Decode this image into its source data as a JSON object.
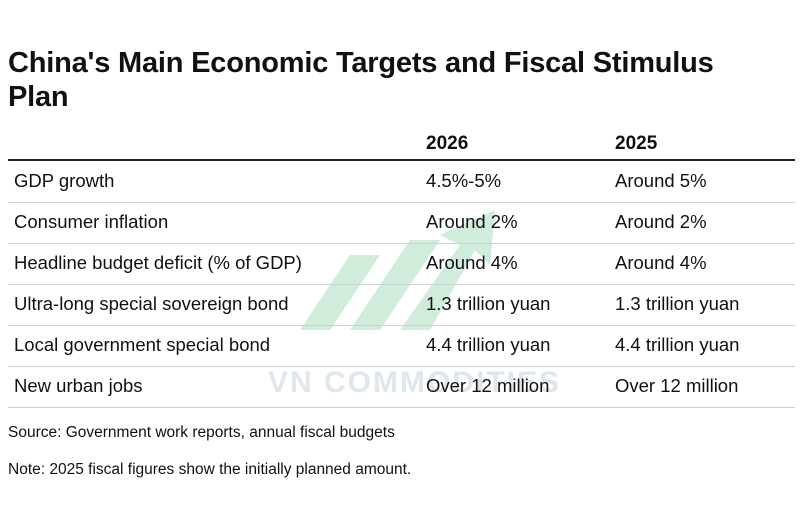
{
  "header": {
    "title": "China's Main Economic Targets and Fiscal Stimulus Plan"
  },
  "table": {
    "columns": [
      "2026",
      "2025"
    ],
    "rows": [
      [
        "GDP growth",
        "4.5%-5%",
        "Around 5%"
      ],
      [
        "Consumer inflation",
        "Around 2%",
        "Around 2%"
      ],
      [
        "Headline budget deficit (% of GDP)",
        "Around 4%",
        "Around 4%"
      ],
      [
        "Ultra-long special sovereign bond",
        "1.3 trillion yuan",
        "1.3 trillion yuan"
      ],
      [
        "Local government special bond",
        "4.4 trillion yuan",
        "4.4 trillion yuan"
      ],
      [
        "New urban jobs",
        "Over 12 million",
        "Over 12 million"
      ]
    ]
  },
  "footer": {
    "source": "Source: Government work reports, annual fiscal budgets",
    "note": "Note: 2025 fiscal figures show the initially planned amount."
  },
  "watermark": "VN COMMODITIES"
}
